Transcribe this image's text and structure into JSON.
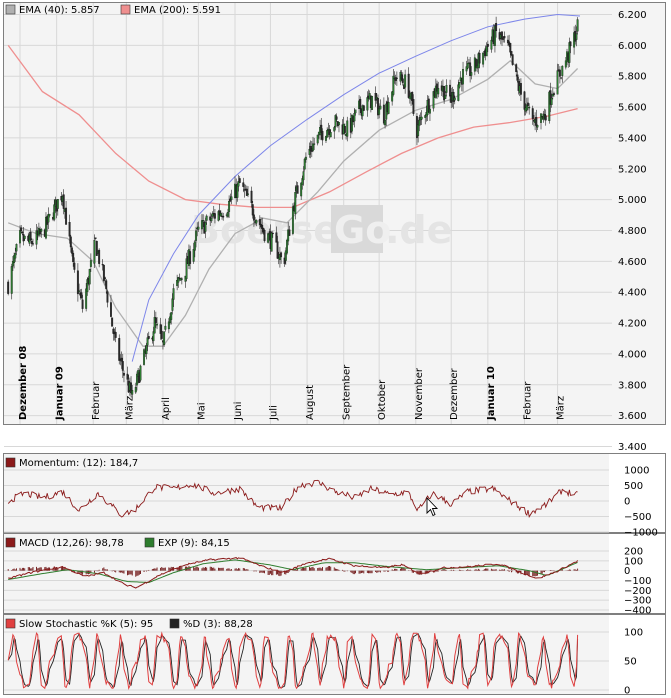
{
  "watermark": {
    "left": "Boerse",
    "box": "Go",
    "right": ".de"
  },
  "colors": {
    "background": "#ffffff",
    "plot_bg": "#f4f4f4",
    "grid": "#d8d8d8",
    "frame": "#7f7f7f",
    "candle_up": "#2e7d32",
    "candle_down": "#2b2b2b",
    "ema40": "#b0b0b0",
    "ema200": "#ef8f8f",
    "trendline": "#7d86ea",
    "parabolic_sar_down": "#e02020",
    "parabolic_sar_up": "#1e9e1e",
    "momentum": "#8b1a1a",
    "macd": "#8b1a1a",
    "macd_signal": "#2e7d2e",
    "stoch_k": "#e04040",
    "stoch_d": "#222222",
    "watermark_text": "#e5e5e5",
    "watermark_box": "#d9d9d9"
  },
  "chart_data": [
    {
      "type": "candlestick",
      "panel": "price",
      "legend": [
        {
          "label": "EMA (40): 5.857",
          "color": "#b0b0b0"
        },
        {
          "label": "EMA (200): 5.591",
          "color": "#ef8f8f"
        }
      ],
      "ylim": [
        3.4,
        6.2
      ],
      "y_ticks": [
        "3.400",
        "3.600",
        "3.800",
        "4.000",
        "4.200",
        "4.400",
        "4.600",
        "4.800",
        "5.000",
        "5.200",
        "5.400",
        "5.600",
        "5.800",
        "6.000",
        "6.200"
      ],
      "x_range": [
        "2008-11-20",
        "2010-03-20"
      ],
      "x_ticks": [
        {
          "date": "2008-12-01",
          "label": "Dezember 08",
          "bold": true
        },
        {
          "date": "2009-01-01",
          "label": "Januar 09",
          "bold": true
        },
        {
          "date": "2009-02-01",
          "label": "Februar",
          "bold": false
        },
        {
          "date": "2009-03-01",
          "label": "März",
          "bold": false
        },
        {
          "date": "2009-04-01",
          "label": "April",
          "bold": false
        },
        {
          "date": "2009-05-01",
          "label": "Mai",
          "bold": false
        },
        {
          "date": "2009-06-01",
          "label": "Juni",
          "bold": false
        },
        {
          "date": "2009-07-01",
          "label": "Juli",
          "bold": false
        },
        {
          "date": "2009-08-01",
          "label": "August",
          "bold": false
        },
        {
          "date": "2009-09-01",
          "label": "September",
          "bold": false
        },
        {
          "date": "2009-10-01",
          "label": "Oktober",
          "bold": false
        },
        {
          "date": "2009-11-01",
          "label": "November",
          "bold": false
        },
        {
          "date": "2009-12-01",
          "label": "Dezember",
          "bold": false
        },
        {
          "date": "2010-01-01",
          "label": "Januar 10",
          "bold": true
        },
        {
          "date": "2010-02-01",
          "label": "Februar",
          "bold": false
        },
        {
          "date": "2010-03-01",
          "label": "März",
          "bold": false
        }
      ],
      "close_keypoints": [
        [
          "2008-11-21",
          4.45
        ],
        [
          "2008-12-01",
          4.75
        ],
        [
          "2008-12-10",
          4.72
        ],
        [
          "2008-12-20",
          4.78
        ],
        [
          "2009-01-06",
          5.05
        ],
        [
          "2009-01-15",
          4.55
        ],
        [
          "2009-01-23",
          4.3
        ],
        [
          "2009-02-03",
          4.72
        ],
        [
          "2009-02-12",
          4.42
        ],
        [
          "2009-02-20",
          4.05
        ],
        [
          "2009-02-26",
          3.9
        ],
        [
          "2009-03-06",
          3.72
        ],
        [
          "2009-03-15",
          3.95
        ],
        [
          "2009-03-25",
          4.2
        ],
        [
          "2009-04-01",
          4.05
        ],
        [
          "2009-04-10",
          4.4
        ],
        [
          "2009-04-20",
          4.55
        ],
        [
          "2009-05-01",
          4.8
        ],
        [
          "2009-05-15",
          4.9
        ],
        [
          "2009-05-25",
          4.95
        ],
        [
          "2009-06-05",
          5.1
        ],
        [
          "2009-06-15",
          4.95
        ],
        [
          "2009-06-25",
          4.8
        ],
        [
          "2009-07-05",
          4.7
        ],
        [
          "2009-07-12",
          4.58
        ],
        [
          "2009-07-20",
          4.95
        ],
        [
          "2009-08-01",
          5.3
        ],
        [
          "2009-08-15",
          5.45
        ],
        [
          "2009-08-25",
          5.5
        ],
        [
          "2009-09-05",
          5.45
        ],
        [
          "2009-09-15",
          5.6
        ],
        [
          "2009-09-25",
          5.65
        ],
        [
          "2009-10-05",
          5.55
        ],
        [
          "2009-10-15",
          5.8
        ],
        [
          "2009-10-25",
          5.75
        ],
        [
          "2009-11-02",
          5.45
        ],
        [
          "2009-11-10",
          5.6
        ],
        [
          "2009-11-20",
          5.75
        ],
        [
          "2009-12-01",
          5.65
        ],
        [
          "2009-12-10",
          5.8
        ],
        [
          "2009-12-20",
          5.85
        ],
        [
          "2010-01-01",
          6.0
        ],
        [
          "2010-01-08",
          6.08
        ],
        [
          "2010-01-18",
          5.98
        ],
        [
          "2010-01-28",
          5.7
        ],
        [
          "2010-02-08",
          5.5
        ],
        [
          "2010-02-18",
          5.55
        ],
        [
          "2010-02-25",
          5.72
        ],
        [
          "2010-03-05",
          5.85
        ],
        [
          "2010-03-12",
          5.98
        ],
        [
          "2010-03-18",
          6.12
        ]
      ],
      "ema40_keypoints": [
        [
          "2008-11-21",
          4.85
        ],
        [
          "2008-12-15",
          4.78
        ],
        [
          "2009-01-10",
          4.75
        ],
        [
          "2009-02-01",
          4.6
        ],
        [
          "2009-02-20",
          4.3
        ],
        [
          "2009-03-15",
          4.05
        ],
        [
          "2009-04-01",
          4.05
        ],
        [
          "2009-04-20",
          4.25
        ],
        [
          "2009-05-10",
          4.55
        ],
        [
          "2009-06-01",
          4.78
        ],
        [
          "2009-06-25",
          4.88
        ],
        [
          "2009-07-15",
          4.85
        ],
        [
          "2009-08-10",
          5.05
        ],
        [
          "2009-09-01",
          5.25
        ],
        [
          "2009-10-01",
          5.45
        ],
        [
          "2009-11-01",
          5.58
        ],
        [
          "2009-12-01",
          5.65
        ],
        [
          "2010-01-01",
          5.78
        ],
        [
          "2010-01-20",
          5.9
        ],
        [
          "2010-02-10",
          5.75
        ],
        [
          "2010-03-01",
          5.72
        ],
        [
          "2010-03-18",
          5.85
        ]
      ],
      "ema200_keypoints": [
        [
          "2008-11-21",
          6.0
        ],
        [
          "2008-12-20",
          5.7
        ],
        [
          "2009-01-20",
          5.55
        ],
        [
          "2009-02-20",
          5.3
        ],
        [
          "2009-03-20",
          5.12
        ],
        [
          "2009-04-20",
          5.0
        ],
        [
          "2009-05-20",
          4.97
        ],
        [
          "2009-06-20",
          4.95
        ],
        [
          "2009-07-20",
          4.95
        ],
        [
          "2009-08-20",
          5.05
        ],
        [
          "2009-09-20",
          5.18
        ],
        [
          "2009-10-20",
          5.3
        ],
        [
          "2009-11-20",
          5.4
        ],
        [
          "2009-12-20",
          5.47
        ],
        [
          "2010-01-20",
          5.5
        ],
        [
          "2010-02-20",
          5.54
        ],
        [
          "2010-03-18",
          5.59
        ]
      ],
      "trendline_keypoints": [
        [
          "2009-03-06",
          3.95
        ],
        [
          "2009-03-20",
          4.35
        ],
        [
          "2009-04-10",
          4.65
        ],
        [
          "2009-05-01",
          4.9
        ],
        [
          "2009-06-01",
          5.15
        ],
        [
          "2009-07-01",
          5.35
        ],
        [
          "2009-08-01",
          5.52
        ],
        [
          "2009-09-01",
          5.68
        ],
        [
          "2009-10-01",
          5.82
        ],
        [
          "2009-11-01",
          5.93
        ],
        [
          "2009-12-01",
          6.03
        ],
        [
          "2010-01-01",
          6.12
        ],
        [
          "2010-02-01",
          6.17
        ],
        [
          "2010-03-01",
          6.2
        ],
        [
          "2010-03-20",
          6.19
        ]
      ]
    },
    {
      "type": "line",
      "panel": "momentum",
      "legend": [
        {
          "label": "Momentum: (12): 184,7",
          "color": "#8b1a1a"
        }
      ],
      "ylim": [
        -1000,
        1000
      ],
      "y_ticks": [
        "1000",
        "500",
        "0",
        "−500",
        "−1000"
      ],
      "keypoints": [
        [
          "2008-11-21",
          0
        ],
        [
          "2008-12-05",
          250
        ],
        [
          "2008-12-20",
          100
        ],
        [
          "2009-01-06",
          300
        ],
        [
          "2009-01-20",
          -300
        ],
        [
          "2009-02-05",
          250
        ],
        [
          "2009-02-25",
          -450
        ],
        [
          "2009-03-08",
          -300
        ],
        [
          "2009-03-25",
          450
        ],
        [
          "2009-04-10",
          400
        ],
        [
          "2009-04-25",
          550
        ],
        [
          "2009-05-15",
          250
        ],
        [
          "2009-06-05",
          400
        ],
        [
          "2009-06-20",
          -200
        ],
        [
          "2009-07-10",
          -250
        ],
        [
          "2009-07-25",
          500
        ],
        [
          "2009-08-10",
          600
        ],
        [
          "2009-08-25",
          300
        ],
        [
          "2009-09-10",
          100
        ],
        [
          "2009-09-25",
          400
        ],
        [
          "2009-10-10",
          200
        ],
        [
          "2009-10-25",
          300
        ],
        [
          "2009-11-03",
          -300
        ],
        [
          "2009-11-15",
          250
        ],
        [
          "2009-12-01",
          -100
        ],
        [
          "2009-12-15",
          300
        ],
        [
          "2010-01-05",
          400
        ],
        [
          "2010-01-20",
          0
        ],
        [
          "2010-02-05",
          -400
        ],
        [
          "2010-02-20",
          -100
        ],
        [
          "2010-03-05",
          350
        ],
        [
          "2010-03-18",
          185
        ]
      ]
    },
    {
      "type": "line+bar",
      "panel": "macd",
      "legend": [
        {
          "label": "MACD (12,26): 98,78",
          "color": "#8b1a1a"
        },
        {
          "label": "EXP (9): 84,15",
          "color": "#2e7d2e"
        }
      ],
      "ylim": [
        -400,
        200
      ],
      "y_ticks": [
        "200",
        "100",
        "0",
        "−100",
        "−200",
        "−300",
        "−400"
      ],
      "macd_keypoints": [
        [
          "2008-11-21",
          -80
        ],
        [
          "2008-12-10",
          -20
        ],
        [
          "2009-01-06",
          40
        ],
        [
          "2009-01-25",
          -60
        ],
        [
          "2009-02-10",
          -20
        ],
        [
          "2009-03-01",
          -150
        ],
        [
          "2009-03-10",
          -170
        ],
        [
          "2009-03-30",
          -40
        ],
        [
          "2009-04-20",
          60
        ],
        [
          "2009-05-10",
          110
        ],
        [
          "2009-06-05",
          130
        ],
        [
          "2009-06-25",
          40
        ],
        [
          "2009-07-12",
          -20
        ],
        [
          "2009-08-01",
          80
        ],
        [
          "2009-08-20",
          120
        ],
        [
          "2009-09-10",
          50
        ],
        [
          "2009-10-05",
          30
        ],
        [
          "2009-10-20",
          60
        ],
        [
          "2009-11-05",
          -30
        ],
        [
          "2009-11-25",
          30
        ],
        [
          "2009-12-15",
          40
        ],
        [
          "2010-01-10",
          70
        ],
        [
          "2010-01-30",
          -20
        ],
        [
          "2010-02-12",
          -80
        ],
        [
          "2010-02-28",
          -10
        ],
        [
          "2010-03-18",
          99
        ]
      ],
      "signal_keypoints": [
        [
          "2008-11-21",
          -90
        ],
        [
          "2008-12-15",
          -40
        ],
        [
          "2009-01-10",
          10
        ],
        [
          "2009-02-05",
          -30
        ],
        [
          "2009-03-01",
          -110
        ],
        [
          "2009-03-20",
          -120
        ],
        [
          "2009-04-10",
          -20
        ],
        [
          "2009-05-05",
          70
        ],
        [
          "2009-06-01",
          110
        ],
        [
          "2009-06-30",
          60
        ],
        [
          "2009-07-20",
          10
        ],
        [
          "2009-08-15",
          80
        ],
        [
          "2009-09-10",
          80
        ],
        [
          "2009-10-10",
          40
        ],
        [
          "2009-11-10",
          10
        ],
        [
          "2009-12-10",
          30
        ],
        [
          "2010-01-10",
          50
        ],
        [
          "2010-02-05",
          0
        ],
        [
          "2010-02-20",
          -50
        ],
        [
          "2010-03-18",
          84
        ]
      ]
    },
    {
      "type": "line",
      "panel": "stochastic",
      "legend": [
        {
          "label": "Slow Stochastic %K (5): 95",
          "color": "#e04040"
        },
        {
          "label": "%D (3): 88,28",
          "color": "#222222"
        }
      ],
      "ylim": [
        0,
        100
      ],
      "y_ticks": [
        "100",
        "50",
        "0"
      ],
      "swing_count": 27,
      "last_k": 95,
      "last_d": 88.28
    }
  ]
}
